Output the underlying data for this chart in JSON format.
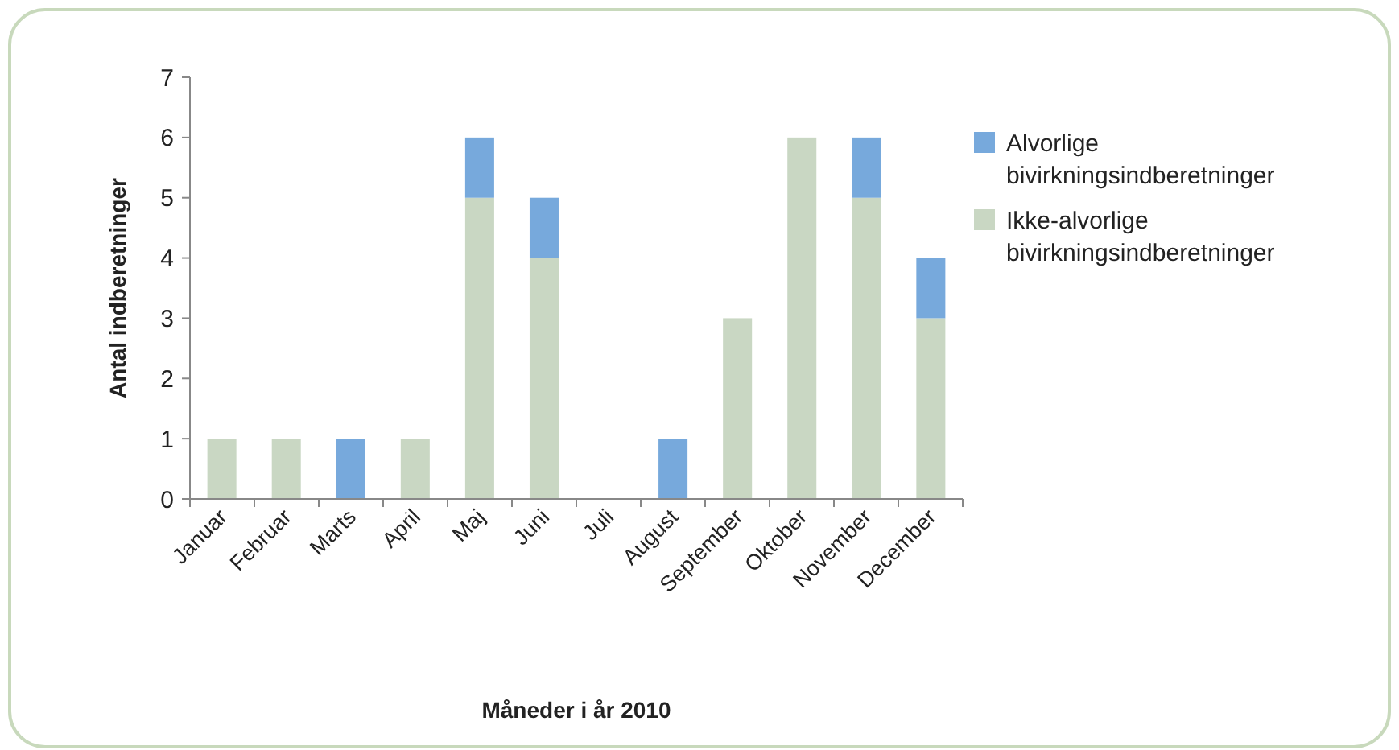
{
  "chart_data": {
    "type": "bar",
    "stacked": true,
    "xlabel": "Måneder i år 2010",
    "ylabel": "Antal indberetninger",
    "categories": [
      "Januar",
      "Februar",
      "Marts",
      "April",
      "Maj",
      "Juni",
      "Juli",
      "August",
      "September",
      "Oktober",
      "November",
      "December"
    ],
    "series": [
      {
        "name": "Ikke-alvorlige bivirkningsindberetninger",
        "color": "#c9d7c3",
        "values": [
          1,
          1,
          0,
          1,
          5,
          4,
          0,
          0,
          3,
          6,
          5,
          3
        ]
      },
      {
        "name": "Alvorlige bivirkningsindberetninger",
        "color": "#77a9dc",
        "values": [
          0,
          0,
          1,
          0,
          1,
          1,
          0,
          1,
          0,
          0,
          1,
          1
        ]
      }
    ],
    "ylim": [
      0,
      7
    ],
    "yticks": [
      0,
      1,
      2,
      3,
      4,
      5,
      6,
      7
    ],
    "grid": false,
    "legend": "right"
  }
}
